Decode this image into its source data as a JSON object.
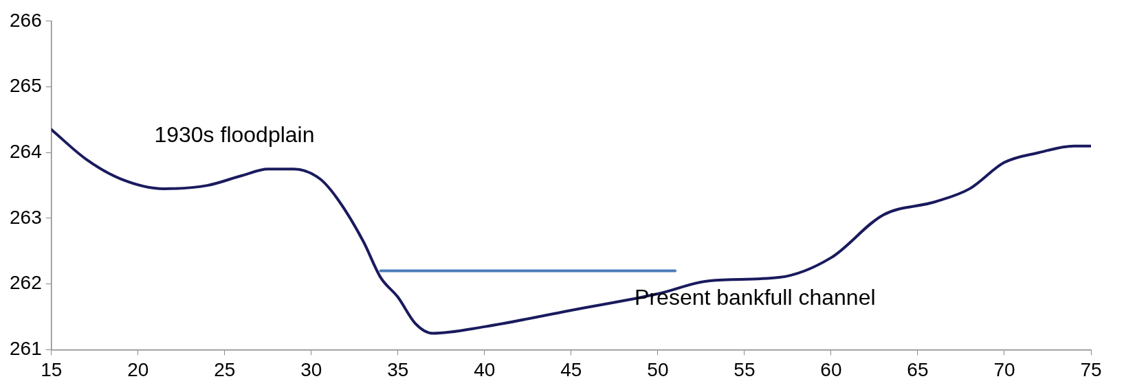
{
  "chart_data": {
    "type": "line",
    "xlim": [
      15,
      75
    ],
    "xticks": [
      15,
      20,
      25,
      30,
      35,
      40,
      45,
      50,
      55,
      60,
      65,
      70,
      75
    ],
    "ylim": [
      261,
      266
    ],
    "yticks": [
      261,
      262,
      263,
      264,
      265,
      266
    ],
    "grid": false,
    "legend": false,
    "marker": "none",
    "series": [
      {
        "color": "#1a1a5e",
        "x": [
          15,
          17,
          19,
          21.5,
          24,
          26,
          27.5,
          29,
          30.5,
          31.5,
          33,
          34,
          35,
          36,
          37,
          40,
          45,
          50,
          53,
          57,
          60,
          63,
          66,
          68,
          70,
          72,
          74,
          75
        ],
        "values": [
          264.35,
          263.9,
          263.6,
          263.45,
          263.5,
          263.65,
          263.75,
          263.75,
          263.6,
          263.3,
          262.65,
          262.1,
          261.8,
          261.4,
          261.25,
          261.35,
          261.6,
          261.85,
          262.05,
          262.1,
          262.4,
          263.05,
          263.25,
          263.45,
          263.85,
          264.0,
          264.1,
          264.1
        ]
      },
      {
        "color": "#4a7ebb",
        "x": [
          34,
          51
        ],
        "values": [
          262.2,
          262.2
        ]
      }
    ],
    "annotations": [
      "1930s floodplain",
      "Present bankfull channel"
    ]
  }
}
